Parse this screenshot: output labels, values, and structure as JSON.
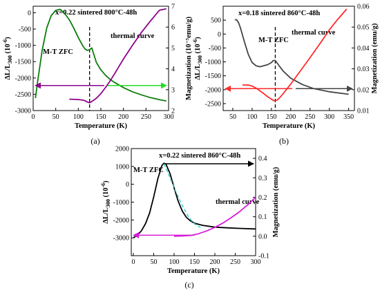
{
  "chart_data": [
    {
      "type": "line",
      "panel_label": "(a)",
      "title": "x=0.22 sintered 800°C-48h",
      "xlabel": "Temperature (K)",
      "ylabel_left": "ΔL/L300 (10⁻⁶)",
      "ylabel_right": "Magnetization (10⁻⁵emu/g)",
      "xlim": [
        0,
        300
      ],
      "ylim_left": [
        -3000,
        200
      ],
      "ylim_right": [
        2,
        7
      ],
      "x_ticks": [
        0,
        50,
        100,
        150,
        200,
        250,
        300
      ],
      "y_ticks_left": [
        0,
        -500,
        -1000,
        -1500,
        -2000,
        -2500,
        -3000
      ],
      "y_ticks_right": [
        2,
        3,
        4,
        5,
        6,
        7
      ],
      "grid": false,
      "annotations": [
        "M-T ZFC",
        "thermal curve"
      ],
      "dashed_line_x": 125,
      "series": [
        {
          "axis": "right",
          "color": "#0a7d0a",
          "x": [
            5,
            10,
            20,
            30,
            40,
            50,
            60,
            70,
            80,
            90,
            100,
            110,
            115,
            120,
            125,
            130,
            135,
            140,
            150,
            160,
            170,
            180,
            200,
            220,
            240,
            260,
            280,
            295
          ],
          "y": [
            2.6,
            3.4,
            4.9,
            5.95,
            6.55,
            6.8,
            6.85,
            6.65,
            6.35,
            5.95,
            5.5,
            5.1,
            4.95,
            4.88,
            4.92,
            5.0,
            4.65,
            4.3,
            3.95,
            3.7,
            3.5,
            3.35,
            3.1,
            2.9,
            2.75,
            2.62,
            2.52,
            2.46
          ]
        },
        {
          "axis": "left",
          "color": "#8b008b",
          "x": [
            80,
            100,
            110,
            115,
            120,
            125,
            130,
            140,
            150,
            160,
            170,
            180,
            190,
            200,
            220,
            240,
            260,
            280,
            295
          ],
          "y": [
            -2650,
            -2660,
            -2680,
            -2700,
            -2740,
            -2760,
            -2720,
            -2620,
            -2480,
            -2300,
            -2100,
            -1880,
            -1650,
            -1420,
            -1000,
            -600,
            -250,
            80,
            120
          ]
        }
      ],
      "arrows": [
        {
          "axis": "right",
          "y": 3.2,
          "color": "#8b008b",
          "direction": "left"
        },
        {
          "axis": "right",
          "y": 3.2,
          "color": "#22dd22",
          "direction": "right"
        }
      ]
    },
    {
      "type": "line",
      "panel_label": "(b)",
      "title": "x=0.18  sintered 860°C-48h",
      "xlabel": "Temperature (K)",
      "ylabel_left": "ΔL/L300 (10⁻⁶)",
      "ylabel_right": "Magnetization (emu/g)",
      "xlim": [
        25,
        365
      ],
      "ylim_left": [
        -2750,
        1000
      ],
      "ylim_right": [
        0.01,
        0.06
      ],
      "x_ticks": [
        50,
        100,
        150,
        200,
        250,
        300,
        350
      ],
      "y_ticks_left": [
        500,
        0,
        -500,
        -1000,
        -1500,
        -2000,
        -2500
      ],
      "y_ticks_right": [
        0.01,
        0.02,
        0.03,
        0.04,
        0.05,
        0.06
      ],
      "grid": false,
      "annotations": [
        "M-T ZFC",
        "thermal curve"
      ],
      "dashed_line_x": 160,
      "series": [
        {
          "axis": "right",
          "color": "#444444",
          "x": [
            55,
            60,
            65,
            70,
            80,
            90,
            100,
            110,
            120,
            130,
            140,
            150,
            155,
            160,
            170,
            180,
            200,
            230,
            260,
            300,
            350
          ],
          "y": [
            0.0535,
            0.0535,
            0.052,
            0.0495,
            0.043,
            0.037,
            0.033,
            0.0315,
            0.031,
            0.0315,
            0.032,
            0.033,
            0.034,
            0.034,
            0.0315,
            0.029,
            0.0255,
            0.0225,
            0.0205,
            0.019,
            0.0178
          ]
        },
        {
          "axis": "left",
          "color": "#ff2a2a",
          "x": [
            75,
            90,
            100,
            110,
            120,
            130,
            140,
            150,
            155,
            160,
            165,
            170,
            180,
            200,
            220,
            250,
            280,
            300,
            320,
            345
          ],
          "y": [
            -1830,
            -1830,
            -1870,
            -1940,
            -2040,
            -2140,
            -2250,
            -2340,
            -2390,
            -2400,
            -2370,
            -2310,
            -2150,
            -1800,
            -1420,
            -850,
            -260,
            150,
            500,
            900
          ]
        }
      ],
      "arrows": [
        {
          "axis": "right",
          "y": 0.0205,
          "color": "#ff2a2a",
          "direction": "left"
        },
        {
          "axis": "right",
          "y": 0.0205,
          "color": "#444444",
          "direction": "right"
        }
      ]
    },
    {
      "type": "line",
      "panel_label": "(c)",
      "title": "x=0.22 sintered 860°C-48h",
      "xlabel": "Temperature (K)",
      "ylabel_left": "ΔL/L300 (10⁻⁶)",
      "ylabel_right": "Magnetization (emu/g)",
      "xlim": [
        -5,
        300
      ],
      "ylim_left": [
        -4000,
        2000
      ],
      "ylim_right": [
        -0.1,
        0.45
      ],
      "x_ticks": [
        0,
        50,
        100,
        150,
        200,
        250,
        300
      ],
      "y_ticks_left": [
        2000,
        1000,
        0,
        -1000,
        -2000,
        -3000
      ],
      "y_ticks_right": [
        -0.1,
        0.0,
        0.1,
        0.2,
        0.3,
        0.4
      ],
      "grid": false,
      "annotations": [
        "M-T ZFC",
        "thermal curve"
      ],
      "series": [
        {
          "axis": "left",
          "color": "#000000",
          "x": [
            0,
            10,
            20,
            30,
            40,
            50,
            60,
            70,
            75,
            80,
            90,
            100,
            110,
            120,
            130,
            140,
            150,
            170,
            200,
            230,
            260,
            300
          ],
          "y": [
            -3000,
            -2850,
            -2600,
            -2200,
            -1600,
            -700,
            300,
            1050,
            1180,
            1130,
            600,
            -200,
            -950,
            -1500,
            -1850,
            -2050,
            -2180,
            -2300,
            -2400,
            -2440,
            -2470,
            -2500
          ]
        },
        {
          "axis": "right",
          "color": "#d81bd8",
          "x": [
            100,
            120,
            140,
            150,
            160,
            180,
            200,
            220,
            240,
            260,
            280,
            300
          ],
          "y": [
            0.0,
            0.001,
            0.004,
            0.008,
            0.013,
            0.027,
            0.045,
            0.068,
            0.095,
            0.125,
            0.16,
            0.2
          ]
        },
        {
          "axis": "left",
          "color": "#22cccc",
          "dash": true,
          "x": [
            75,
            85,
            95,
            105,
            115,
            125,
            135,
            145,
            155,
            165
          ],
          "y": [
            1150,
            650,
            100,
            -450,
            -950,
            -1400,
            -1800,
            -2100,
            -2300,
            -2420
          ]
        }
      ],
      "arrows": [
        {
          "axis": "left",
          "y": 1150,
          "color": "#000000",
          "direction": "right"
        },
        {
          "axis": "right",
          "y": 0.005,
          "color": "#d81bd8",
          "direction": "left"
        }
      ]
    }
  ],
  "captions": {
    "a": "(a)",
    "b": "(b)",
    "c": "(c)"
  }
}
